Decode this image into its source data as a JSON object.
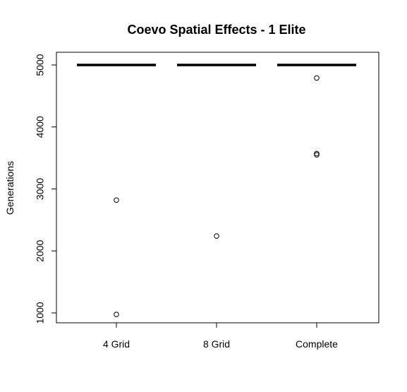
{
  "chart_data": {
    "type": "box",
    "title": "Coevo Spatial Effects - 1 Elite",
    "xlabel": "",
    "ylabel": "Generations",
    "categories": [
      "4 Grid",
      "8 Grid",
      "Complete"
    ],
    "ylim": [
      850,
      5200
    ],
    "yticks": [
      1000,
      2000,
      3000,
      4000,
      5000
    ],
    "ytick_labels": [
      "1000",
      "2000",
      "3000",
      "4000",
      "5000"
    ],
    "grid": false,
    "boxes": [
      {
        "category": "4 Grid",
        "median": 5000,
        "q1": 5000,
        "q3": 5000,
        "whisker_low": 5000,
        "whisker_high": 5000,
        "outliers": [
          2820,
          975
        ]
      },
      {
        "category": "8 Grid",
        "median": 5000,
        "q1": 5000,
        "q3": 5000,
        "whisker_low": 5000,
        "whisker_high": 5000,
        "outliers": [
          2240
        ]
      },
      {
        "category": "Complete",
        "median": 5000,
        "q1": 5000,
        "q3": 5000,
        "whisker_low": 5000,
        "whisker_high": 5000,
        "outliers": [
          4790,
          3570,
          3550
        ]
      }
    ]
  }
}
